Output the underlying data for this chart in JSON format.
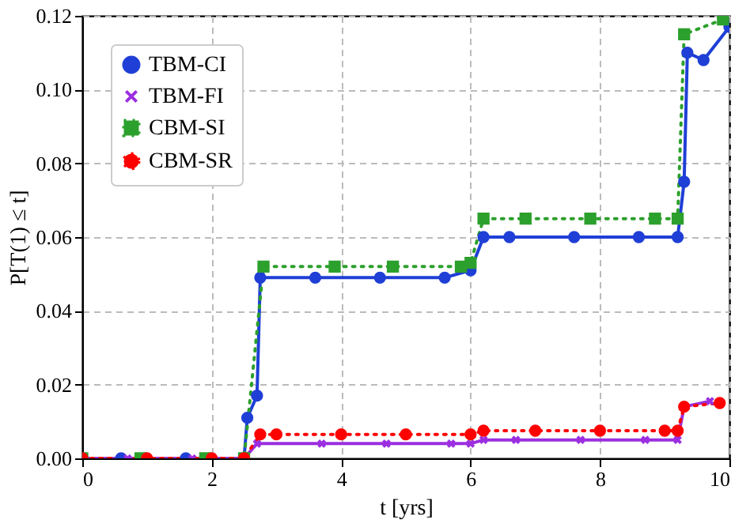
{
  "chart_data": {
    "type": "line",
    "xlabel": "t [yrs]",
    "ylabel": "P[T(1) ≤ t]",
    "xlim": [
      0,
      10
    ],
    "ylim": [
      0,
      0.12
    ],
    "xticks": [
      0,
      2,
      4,
      6,
      8,
      10
    ],
    "yticks": [
      {
        "value": 0,
        "label": "0.00"
      },
      {
        "value": 0.02,
        "label": "0.02"
      },
      {
        "value": 0.04,
        "label": "0.04"
      },
      {
        "value": 0.06,
        "label": "0.06"
      },
      {
        "value": 0.08,
        "label": "0.08"
      },
      {
        "value": 0.1,
        "label": "0.10"
      },
      {
        "value": 0.12,
        "label": "0.12"
      }
    ],
    "grid": true,
    "legend": "top left",
    "series": [
      {
        "name": "TBM-CI",
        "color": "#1f3fd6",
        "marker": "circle",
        "line_style": "solid",
        "x": [
          0,
          0.6,
          1.6,
          2.5,
          2.55,
          2.7,
          2.75,
          3.6,
          4.6,
          5.6,
          6.0,
          6.2,
          6.6,
          7.6,
          8.6,
          9.2,
          9.3,
          9.35,
          9.6,
          10
        ],
        "values": [
          0,
          0,
          0,
          0,
          0.011,
          0.017,
          0.049,
          0.049,
          0.049,
          0.049,
          0.051,
          0.06,
          0.06,
          0.06,
          0.06,
          0.06,
          0.075,
          0.11,
          0.108,
          0.117
        ]
      },
      {
        "name": "TBM-FI",
        "color": "#9b2fe0",
        "marker": "cross",
        "line_style": "solid",
        "x": [
          0,
          0.7,
          1.7,
          2.5,
          2.7,
          3.7,
          4.7,
          5.7,
          6.0,
          6.2,
          6.7,
          7.7,
          8.7,
          9.2,
          9.3,
          9.7
        ],
        "values": [
          0,
          0,
          0,
          0,
          0.004,
          0.004,
          0.004,
          0.004,
          0.004,
          0.005,
          0.005,
          0.005,
          0.005,
          0.005,
          0.014,
          0.0155
        ]
      },
      {
        "name": "CBM-SI",
        "color": "#2ca02c",
        "marker": "square",
        "line_style": "dotted",
        "x": [
          0,
          0.9,
          1.9,
          2.5,
          2.8,
          3.9,
          4.8,
          5.85,
          6.0,
          6.2,
          6.85,
          7.85,
          8.85,
          9.2,
          9.3,
          9.9
        ],
        "values": [
          0,
          0,
          0,
          0,
          0.052,
          0.052,
          0.052,
          0.052,
          0.053,
          0.065,
          0.065,
          0.065,
          0.065,
          0.065,
          0.115,
          0.119
        ]
      },
      {
        "name": "CBM-SR",
        "color": "#ff0000",
        "marker": "circle",
        "line_style": "dotted",
        "x": [
          0,
          1,
          2,
          2.5,
          2.75,
          3,
          4,
          5,
          6,
          6.2,
          7,
          8,
          9,
          9.2,
          9.3,
          9.85
        ],
        "values": [
          0,
          0,
          0,
          0,
          0.0065,
          0.0065,
          0.0065,
          0.0065,
          0.0065,
          0.0075,
          0.0075,
          0.0075,
          0.0075,
          0.0075,
          0.014,
          0.015
        ]
      }
    ]
  }
}
